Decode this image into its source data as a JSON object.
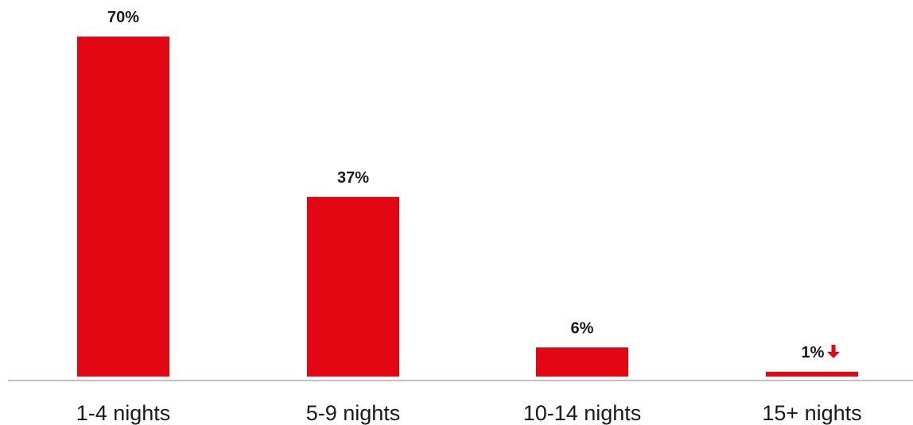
{
  "chart_data": {
    "type": "bar",
    "title": "",
    "xlabel": "",
    "ylabel": "",
    "categories": [
      "1-4 nights",
      "5-9 nights",
      "10-14 nights",
      "15+ nights"
    ],
    "values": [
      70,
      37,
      6,
      1
    ],
    "data_labels": [
      "70%",
      "37%",
      "6%",
      "1%"
    ],
    "unit": "%",
    "ylim": [
      0,
      70
    ],
    "grid": false,
    "legend": "none",
    "annotations": [
      {
        "category": "15+ nights",
        "marker": "down-arrow-icon",
        "meaning": "decrease"
      }
    ]
  },
  "colors": {
    "bar": "#e30613",
    "arrow": "#e30613",
    "axis": "#bfbfbf",
    "text": "#1a1a1a"
  }
}
